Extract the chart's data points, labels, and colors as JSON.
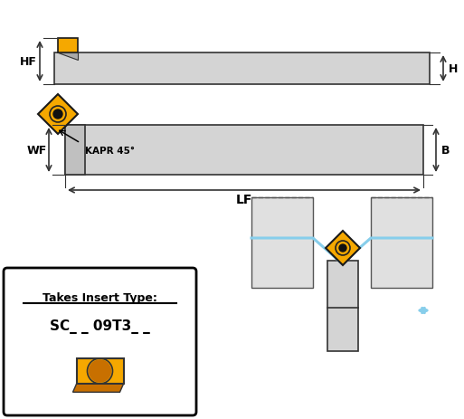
{
  "bg_color": "#ffffff",
  "holder_color": "#d4d4d4",
  "holder_edge": "#333333",
  "insert_color": "#f5a800",
  "insert_edge": "#1a1a1a",
  "dim_line_color": "#333333",
  "blue_arrow_color": "#87ceeb",
  "label_HF": "HF",
  "label_H": "H",
  "label_WF": "WF",
  "label_B": "B",
  "label_LF": "LF",
  "label_KAPR": "KAPR 45°",
  "insert_label": "Takes Insert Type:",
  "insert_code": "SC_ _ 09T3_ _"
}
